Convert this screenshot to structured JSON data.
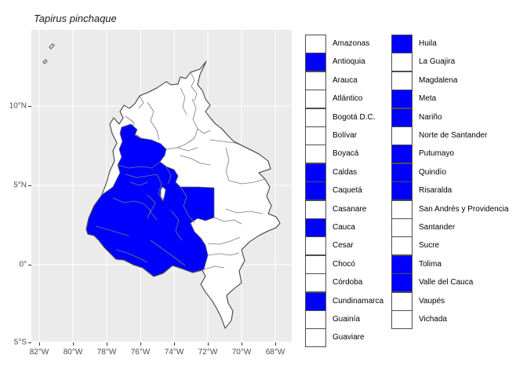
{
  "title": "Tapirus pinchaque",
  "colors": {
    "highlight": "#0000FF",
    "panel_background": "#EBEBEB",
    "gridline": "#FFFFFF",
    "country_fill": "#FFFFFF",
    "country_border": "#4D4D4D",
    "department_border": "#7A7A7A",
    "axis_text": "#4D4D4D",
    "checkbox_border": "#4D4D4D"
  },
  "axes": {
    "x_ticks": [
      "82°W",
      "80°W",
      "78°W",
      "76°W",
      "74°W",
      "72°W",
      "70°W",
      "68°W"
    ],
    "y_ticks": [
      "10°N",
      "5°N",
      "0°",
      "5°S"
    ]
  },
  "legend": {
    "column1": [
      {
        "name": "Amazonas",
        "selected": false
      },
      {
        "name": "Antioquia",
        "selected": true
      },
      {
        "name": "Arauca",
        "selected": false
      },
      {
        "name": "Atlántico",
        "selected": false
      },
      {
        "name": "Bogotá D.C.",
        "selected": false
      },
      {
        "name": "Bolívar",
        "selected": false
      },
      {
        "name": "Boyacá",
        "selected": false
      },
      {
        "name": "Caldas",
        "selected": true
      },
      {
        "name": "Caquetá",
        "selected": true
      },
      {
        "name": "Casanare",
        "selected": false
      },
      {
        "name": "Cauca",
        "selected": true
      },
      {
        "name": "Cesar",
        "selected": false
      },
      {
        "name": "Chocó",
        "selected": false
      },
      {
        "name": "Córdoba",
        "selected": false
      },
      {
        "name": "Cundinamarca",
        "selected": true
      },
      {
        "name": "Guainía",
        "selected": false
      },
      {
        "name": "Guaviare",
        "selected": false
      }
    ],
    "column2": [
      {
        "name": "Huila",
        "selected": true
      },
      {
        "name": "La Guajira",
        "selected": false
      },
      {
        "name": "Magdalena",
        "selected": false
      },
      {
        "name": "Meta",
        "selected": true
      },
      {
        "name": "Nariño",
        "selected": true
      },
      {
        "name": "Norte de Santander",
        "selected": false
      },
      {
        "name": "Putumayo",
        "selected": true
      },
      {
        "name": "Quindío",
        "selected": true
      },
      {
        "name": "Risaralda",
        "selected": true
      },
      {
        "name": "San Andrés y Providencia",
        "selected": false
      },
      {
        "name": "Santander",
        "selected": false
      },
      {
        "name": "Sucre",
        "selected": false
      },
      {
        "name": "Tolima",
        "selected": true
      },
      {
        "name": "Valle del Cauca",
        "selected": true
      },
      {
        "name": "Vaupés",
        "selected": false
      },
      {
        "name": "Vichada",
        "selected": false
      }
    ]
  },
  "map": {
    "region": "Colombia",
    "highlighted_departments": [
      "Antioquia",
      "Caldas",
      "Caquetá",
      "Cauca",
      "Cundinamarca",
      "Huila",
      "Meta",
      "Nariño",
      "Putumayo",
      "Quindío",
      "Risaralda",
      "Tolima",
      "Valle del Cauca"
    ],
    "not_highlighted_departments": [
      "Amazonas",
      "Arauca",
      "Atlántico",
      "Bogotá D.C.",
      "Bolívar",
      "Boyacá",
      "Casanare",
      "Cesar",
      "Chocó",
      "Córdoba",
      "Guainía",
      "Guaviare",
      "La Guajira",
      "Magdalena",
      "Norte de Santander",
      "San Andrés y Providencia",
      "Santander",
      "Sucre",
      "Vaupés",
      "Vichada"
    ]
  }
}
